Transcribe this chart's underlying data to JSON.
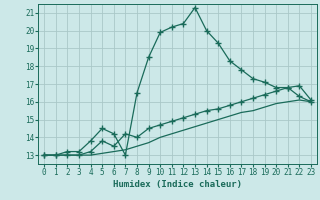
{
  "background_color": "#cce8e8",
  "grid_color": "#aac8c8",
  "line_color": "#1a6b5a",
  "xlabel": "Humidex (Indice chaleur)",
  "xlim": [
    -0.5,
    23.5
  ],
  "ylim": [
    12.5,
    21.5
  ],
  "yticks": [
    13,
    14,
    15,
    16,
    17,
    18,
    19,
    20,
    21
  ],
  "xticks": [
    0,
    1,
    2,
    3,
    4,
    5,
    6,
    7,
    8,
    9,
    10,
    11,
    12,
    13,
    14,
    15,
    16,
    17,
    18,
    19,
    20,
    21,
    22,
    23
  ],
  "line1_x": [
    0,
    1,
    2,
    3,
    4,
    5,
    6,
    7,
    8,
    9,
    10,
    11,
    12,
    13,
    14,
    15,
    16,
    17,
    18,
    19,
    20,
    21,
    22,
    23
  ],
  "line1_y": [
    13,
    13,
    13.2,
    13.2,
    13.8,
    14.5,
    14.2,
    13.0,
    16.5,
    18.5,
    19.9,
    20.2,
    20.4,
    21.3,
    20.0,
    19.3,
    18.3,
    17.8,
    17.3,
    17.1,
    16.8,
    16.8,
    16.3,
    16.0
  ],
  "line2_x": [
    0,
    1,
    2,
    3,
    4,
    5,
    6,
    7,
    8,
    9,
    10,
    11,
    12,
    13,
    14,
    15,
    16,
    17,
    18,
    19,
    20,
    21,
    22,
    23
  ],
  "line2_y": [
    13,
    13,
    13,
    13,
    13.2,
    13.8,
    13.5,
    14.2,
    14.0,
    14.5,
    14.7,
    14.9,
    15.1,
    15.3,
    15.5,
    15.6,
    15.8,
    16.0,
    16.2,
    16.4,
    16.6,
    16.8,
    16.9,
    16.1
  ],
  "line3_x": [
    0,
    1,
    2,
    3,
    4,
    5,
    6,
    7,
    8,
    9,
    10,
    11,
    12,
    13,
    14,
    15,
    16,
    17,
    18,
    19,
    20,
    21,
    22,
    23
  ],
  "line3_y": [
    13,
    13,
    13,
    13,
    13.0,
    13.1,
    13.2,
    13.3,
    13.5,
    13.7,
    14.0,
    14.2,
    14.4,
    14.6,
    14.8,
    15.0,
    15.2,
    15.4,
    15.5,
    15.7,
    15.9,
    16.0,
    16.1,
    16.0
  ],
  "marker": "+",
  "marker_size": 4,
  "linewidth": 0.9
}
